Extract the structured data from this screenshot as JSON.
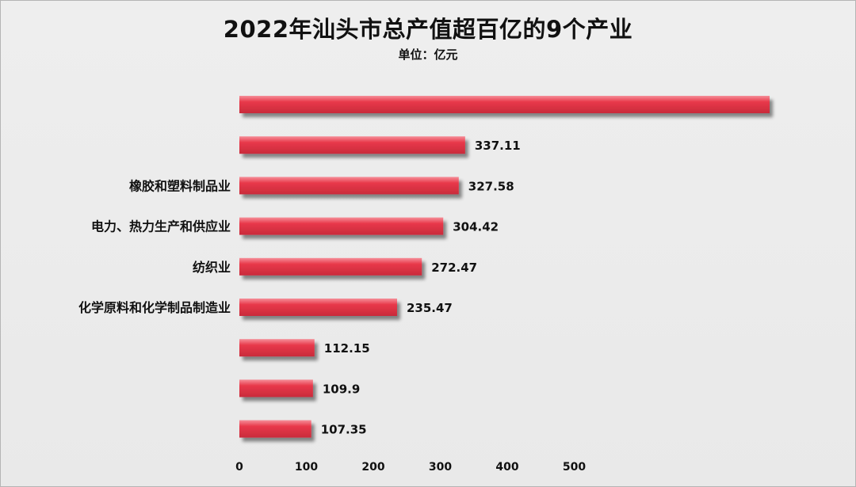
{
  "title": "2022年汕头市总产值超百亿的9个产业",
  "subtitle": "单位：亿元",
  "colors": {
    "bar": "#e8384a",
    "bar_highlight": "#f58f99",
    "bar_shadow": "#c92b3b"
  },
  "chart_data": {
    "type": "bar",
    "orientation": "horizontal",
    "categories": [
      "",
      "",
      "橡胶和塑料制品业",
      "电力、热力生产和供应业",
      "纺织业",
      "化学原料和化学制品制造业",
      "",
      "",
      ""
    ],
    "values": [
      null,
      337.11,
      327.58,
      304.42,
      272.47,
      235.47,
      112.15,
      109.9,
      107.35
    ],
    "value_labels": [
      "",
      "337.11",
      "327.58",
      "304.42",
      "272.47",
      "235.47",
      "112.15",
      "109.9",
      "107.35"
    ],
    "xticks": [
      "0",
      "100",
      "200",
      "300",
      "400",
      "500"
    ],
    "xlim": [
      0,
      500
    ],
    "grid": false,
    "legend": "none"
  }
}
